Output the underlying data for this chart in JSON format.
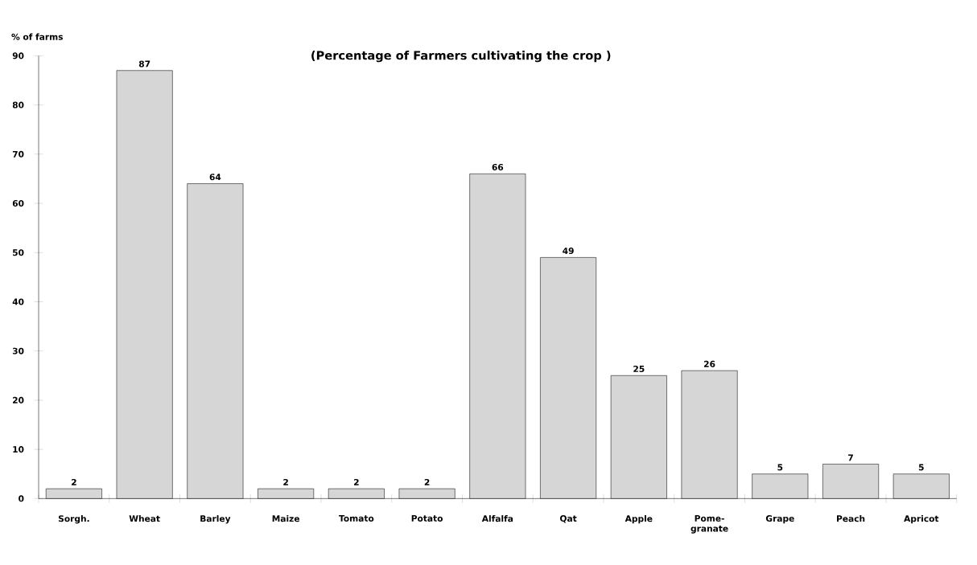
{
  "chart_data": {
    "type": "bar",
    "title": "(Percentage of Farmers cultivating the crop )",
    "ylabel": "% of farms",
    "categories": [
      "Sorgh.",
      "Wheat",
      "Barley",
      "Maize",
      "Tomato",
      "Potato",
      "Alfalfa",
      "Qat",
      "Apple",
      "Pome- granate",
      "Grape",
      "Peach",
      "Apricot"
    ],
    "values": [
      2,
      87,
      64,
      2,
      2,
      2,
      66,
      49,
      25,
      26,
      5,
      7,
      5
    ],
    "color": "#d6d6d6",
    "ylim": [
      0,
      90
    ],
    "yticks": [
      0,
      10,
      20,
      30,
      40,
      50,
      60,
      70,
      80,
      90
    ],
    "grid": false,
    "data_labels": true
  }
}
